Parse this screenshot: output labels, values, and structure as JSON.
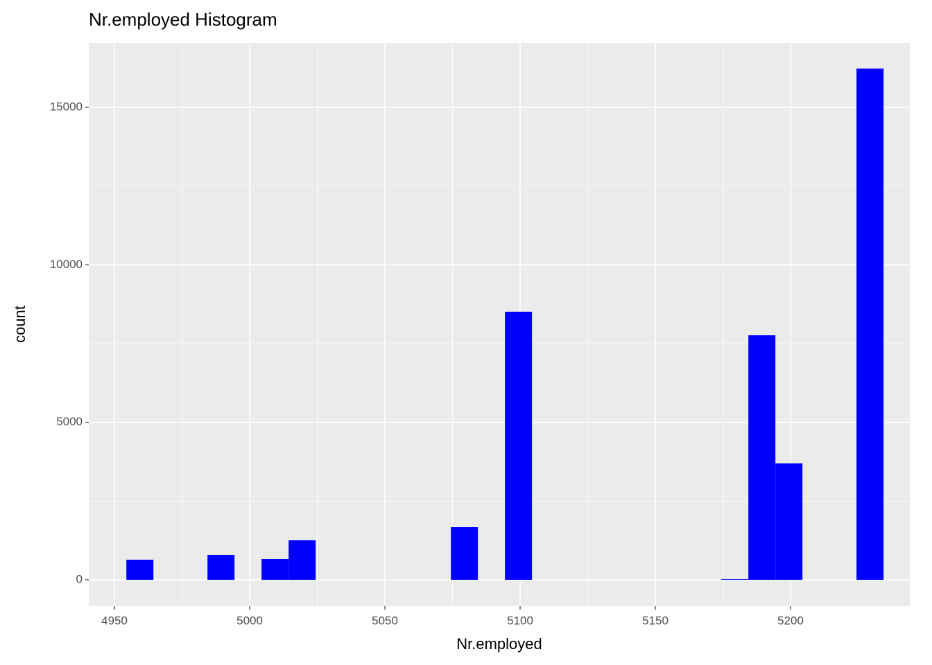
{
  "chart_data": {
    "type": "histogram",
    "title": "Nr.employed Histogram",
    "x_label": "Nr.employed",
    "y_label": "count",
    "bins": [
      4954.4,
      4964.4,
      4974.4,
      4984.4,
      4994.4,
      5004.4,
      5014.4,
      5024.4,
      5034.4,
      5044.4,
      5054.4,
      5064.4,
      5074.4,
      5084.4,
      5094.4,
      5104.4,
      5114.4,
      5124.4,
      5134.4,
      5144.4,
      5154.4,
      5164.4,
      5174.4,
      5184.4,
      5194.4,
      5204.4,
      5214.4,
      5224.4,
      5234.4
    ],
    "counts": [
      638,
      0,
      0,
      792,
      0,
      660,
      1254,
      0,
      0,
      0,
      0,
      0,
      1671,
      0,
      8511,
      0,
      0,
      0,
      0,
      0,
      0,
      0,
      20,
      7763,
      3695,
      0,
      0,
      16231
    ],
    "color": "#0000ff",
    "xlim": [
      4940.5,
      5244.1
    ],
    "xticks": [
      4950,
      5000,
      5050,
      5100,
      5150,
      5200
    ],
    "ylim": [
      -836,
      17044
    ],
    "yticks": [
      0,
      5000,
      10000,
      15000
    ],
    "grid": true
  }
}
